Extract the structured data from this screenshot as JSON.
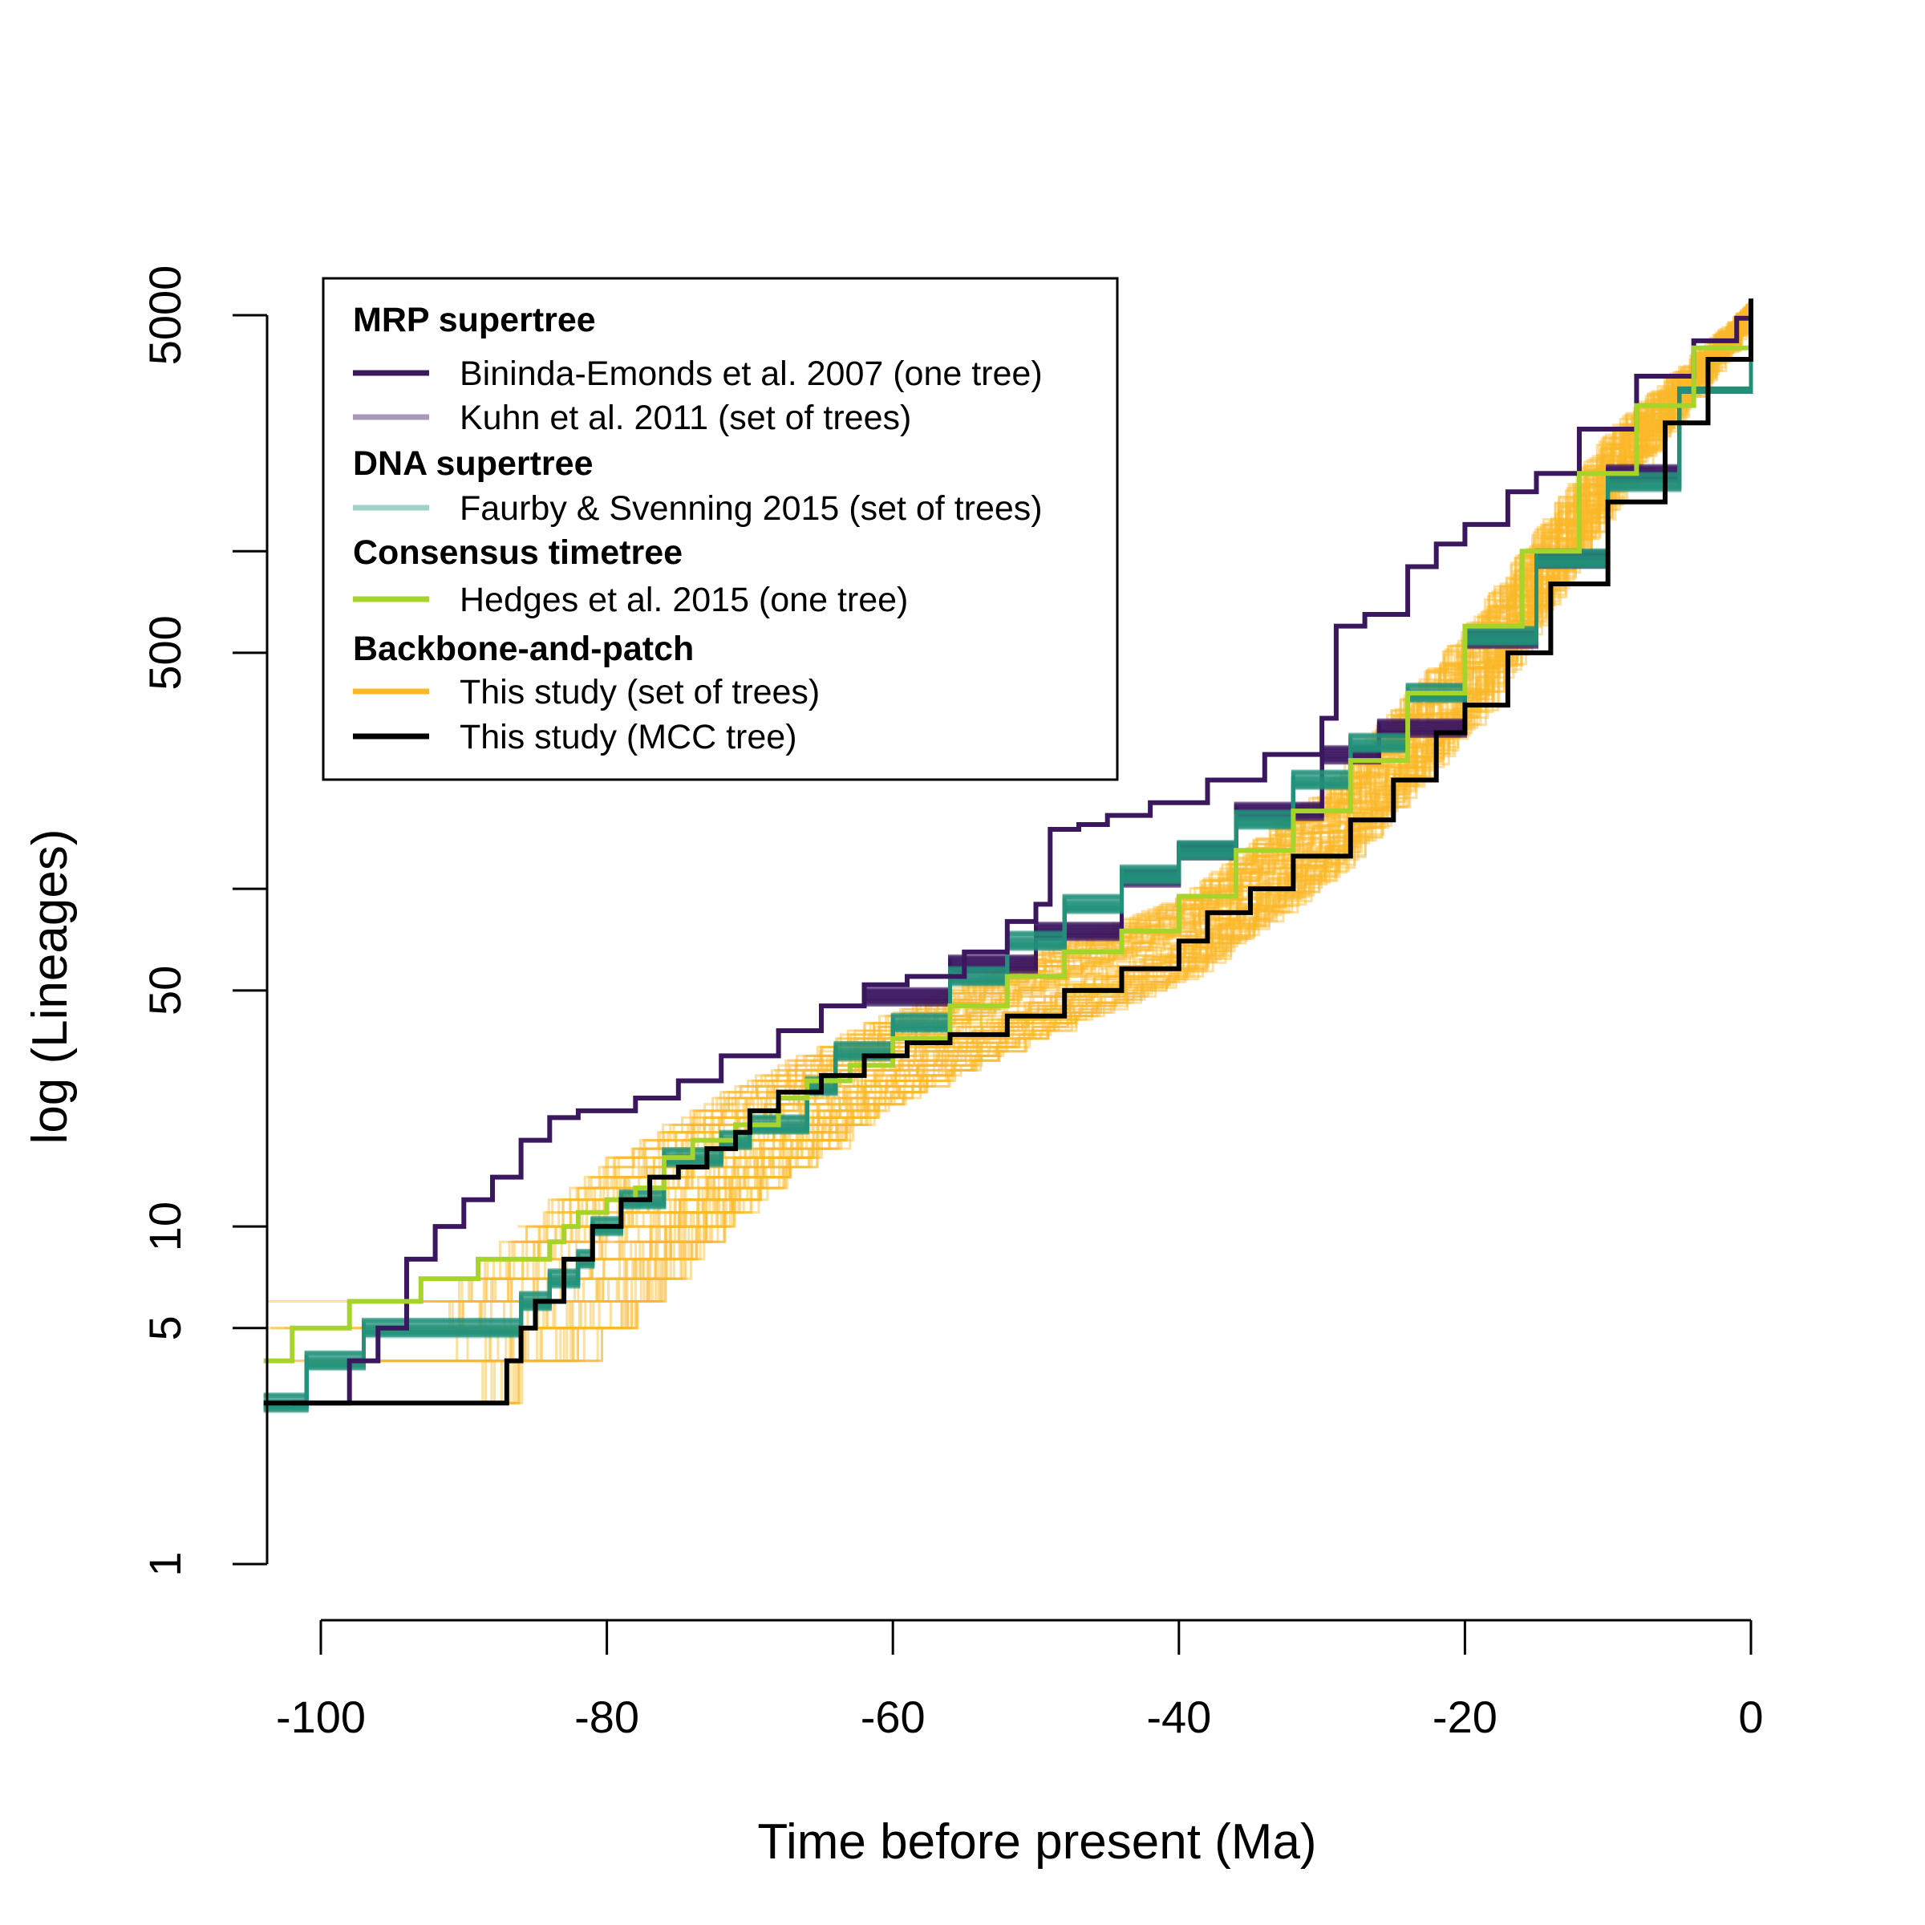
{
  "chart_data": {
    "type": "line",
    "xlabel": "Time before present (Ma)",
    "ylabel": "log (Lineages)",
    "x_ticks": [
      -100,
      -80,
      -60,
      -40,
      -20,
      0
    ],
    "x_tick_labels": [
      "-100",
      "-80",
      "-60",
      "-40",
      "-20",
      "0"
    ],
    "y_scale": "log",
    "y_ticks": [
      1,
      5,
      10,
      50,
      100,
      500,
      1000,
      5000
    ],
    "y_tick_labels": [
      "1",
      "5",
      "10",
      "50",
      "",
      "500",
      "",
      "5000"
    ],
    "xlim": [
      -104,
      0
    ],
    "ylim": [
      1,
      5000
    ],
    "grid": false,
    "legend_position": "top-left",
    "legend": [
      {
        "kind": "header",
        "text": "MRP supertree"
      },
      {
        "kind": "item",
        "text": "Bininda-Emonds et al. 2007 (one tree)",
        "color": "#3b1760",
        "series": "bininda"
      },
      {
        "kind": "item",
        "text": "Kuhn et al. 2011 (set of trees)",
        "color": "#a89ab8",
        "series": "kuhn"
      },
      {
        "kind": "header",
        "text": "DNA supertree"
      },
      {
        "kind": "item",
        "text": "Faurby & Svenning 2015 (set of trees)",
        "color": "#9fd3c8",
        "series": "faurby"
      },
      {
        "kind": "header",
        "text": "Consensus timetree"
      },
      {
        "kind": "item",
        "text": "Hedges et al. 2015 (one tree)",
        "color": "#a6d42a",
        "series": "hedges"
      },
      {
        "kind": "header",
        "text": "Backbone-and-patch"
      },
      {
        "kind": "item",
        "text": "This study (set of trees)",
        "color": "#fbb728",
        "series": "this_set"
      },
      {
        "kind": "item",
        "text": "This study (MCC tree)",
        "color": "#000000",
        "series": "this_mcc"
      }
    ],
    "series": [
      {
        "id": "this_set",
        "color": "#fbb728",
        "style": "band",
        "count": 80,
        "start_x_range": [
          -104,
          -76
        ],
        "lower": [
          [
            -104,
            3
          ],
          [
            -90,
            3
          ],
          [
            -80,
            5
          ],
          [
            -72,
            11
          ],
          [
            -62,
            22
          ],
          [
            -50,
            37
          ],
          [
            -40,
            55
          ],
          [
            -30,
            110
          ],
          [
            -20,
            320
          ],
          [
            -10,
            1500
          ],
          [
            0,
            5500
          ]
        ],
        "upper": [
          [
            -104,
            6
          ],
          [
            -92,
            6
          ],
          [
            -86,
            10
          ],
          [
            -80,
            16
          ],
          [
            -72,
            25
          ],
          [
            -62,
            40
          ],
          [
            -50,
            65
          ],
          [
            -40,
            95
          ],
          [
            -30,
            200
          ],
          [
            -20,
            600
          ],
          [
            -10,
            2300
          ],
          [
            0,
            5500
          ]
        ]
      },
      {
        "id": "kuhn",
        "color": "#3b1760",
        "style": "band",
        "count": 30,
        "points": [
          [
            -62,
            48
          ],
          [
            -56,
            60
          ],
          [
            -50,
            75
          ],
          [
            -44,
            108
          ],
          [
            -40,
            130
          ],
          [
            -36,
            170
          ],
          [
            -30,
            250
          ],
          [
            -26,
            300
          ],
          [
            -20,
            550
          ],
          [
            -15,
            950
          ],
          [
            -10,
            1700
          ],
          [
            -5,
            3000
          ],
          [
            0,
            5000
          ]
        ]
      },
      {
        "id": "faurby",
        "color": "#23917a",
        "style": "band",
        "count": 30,
        "points": [
          [
            -104,
            3
          ],
          [
            -102,
            3
          ],
          [
            -101,
            4
          ],
          [
            -98,
            4
          ],
          [
            -97,
            5
          ],
          [
            -87,
            5
          ],
          [
            -86,
            6
          ],
          [
            -84,
            7
          ],
          [
            -82,
            8
          ],
          [
            -81,
            10
          ],
          [
            -79,
            12
          ],
          [
            -76,
            16
          ],
          [
            -72,
            18
          ],
          [
            -70,
            20
          ],
          [
            -66,
            26
          ],
          [
            -64,
            33
          ],
          [
            -60,
            40
          ],
          [
            -56,
            55
          ],
          [
            -52,
            70
          ],
          [
            -48,
            90
          ],
          [
            -44,
            110
          ],
          [
            -40,
            130
          ],
          [
            -36,
            160
          ],
          [
            -32,
            210
          ],
          [
            -28,
            270
          ],
          [
            -24,
            380
          ],
          [
            -20,
            560
          ],
          [
            -15,
            950
          ],
          [
            -10,
            1600
          ],
          [
            -5,
            3000
          ],
          [
            0,
            5400
          ]
        ]
      },
      {
        "id": "bininda",
        "color": "#3b1760",
        "style": "steps",
        "points": [
          [
            -102,
            3
          ],
          [
            -98,
            4
          ],
          [
            -96,
            5
          ],
          [
            -94,
            8
          ],
          [
            -92,
            10
          ],
          [
            -90,
            12
          ],
          [
            -88,
            14
          ],
          [
            -86,
            18
          ],
          [
            -84,
            21
          ],
          [
            -82,
            22
          ],
          [
            -78,
            24
          ],
          [
            -75,
            27
          ],
          [
            -72,
            32
          ],
          [
            -68,
            38
          ],
          [
            -65,
            45
          ],
          [
            -62,
            52
          ],
          [
            -59,
            55
          ],
          [
            -55,
            65
          ],
          [
            -52,
            80
          ],
          [
            -50,
            90
          ],
          [
            -49,
            150
          ],
          [
            -47,
            155
          ],
          [
            -45,
            165
          ],
          [
            -42,
            180
          ],
          [
            -38,
            210
          ],
          [
            -34,
            250
          ],
          [
            -30,
            320
          ],
          [
            -29,
            600
          ],
          [
            -27,
            650
          ],
          [
            -24,
            900
          ],
          [
            -22,
            1050
          ],
          [
            -20,
            1200
          ],
          [
            -17,
            1500
          ],
          [
            -15,
            1700
          ],
          [
            -12,
            2300
          ],
          [
            -8,
            3300
          ],
          [
            -4,
            4200
          ],
          [
            -1,
            4900
          ],
          [
            0,
            5000
          ]
        ]
      },
      {
        "id": "hedges",
        "color": "#a6d42a",
        "style": "steps",
        "points": [
          [
            -104,
            4
          ],
          [
            -102,
            5
          ],
          [
            -100,
            5
          ],
          [
            -98,
            6
          ],
          [
            -94,
            6
          ],
          [
            -93,
            7
          ],
          [
            -90,
            7
          ],
          [
            -89,
            8
          ],
          [
            -86,
            8
          ],
          [
            -84,
            9
          ],
          [
            -83,
            10
          ],
          [
            -82,
            11
          ],
          [
            -80,
            12
          ],
          [
            -78,
            13
          ],
          [
            -76,
            16
          ],
          [
            -74,
            18
          ],
          [
            -71,
            20
          ],
          [
            -68,
            24
          ],
          [
            -66,
            27
          ],
          [
            -63,
            30
          ],
          [
            -60,
            36
          ],
          [
            -56,
            45
          ],
          [
            -52,
            55
          ],
          [
            -48,
            65
          ],
          [
            -44,
            75
          ],
          [
            -40,
            95
          ],
          [
            -36,
            130
          ],
          [
            -32,
            170
          ],
          [
            -28,
            240
          ],
          [
            -24,
            380
          ],
          [
            -20,
            600
          ],
          [
            -16,
            1000
          ],
          [
            -12,
            1700
          ],
          [
            -8,
            2700
          ],
          [
            -4,
            4000
          ],
          [
            0,
            5500
          ]
        ]
      },
      {
        "id": "this_mcc",
        "color": "#000000",
        "style": "steps",
        "points": [
          [
            -104,
            3
          ],
          [
            -88,
            3
          ],
          [
            -87,
            4
          ],
          [
            -86,
            5
          ],
          [
            -85,
            6
          ],
          [
            -84,
            6
          ],
          [
            -83,
            8
          ],
          [
            -81,
            10
          ],
          [
            -79,
            12
          ],
          [
            -77,
            14
          ],
          [
            -75,
            15
          ],
          [
            -73,
            17
          ],
          [
            -71,
            19
          ],
          [
            -70,
            22
          ],
          [
            -68,
            25
          ],
          [
            -65,
            28
          ],
          [
            -62,
            32
          ],
          [
            -59,
            35
          ],
          [
            -56,
            37
          ],
          [
            -52,
            42
          ],
          [
            -48,
            50
          ],
          [
            -44,
            58
          ],
          [
            -40,
            70
          ],
          [
            -38,
            85
          ],
          [
            -35,
            100
          ],
          [
            -32,
            125
          ],
          [
            -28,
            160
          ],
          [
            -25,
            210
          ],
          [
            -22,
            290
          ],
          [
            -20,
            350
          ],
          [
            -17,
            500
          ],
          [
            -14,
            800
          ],
          [
            -10,
            1400
          ],
          [
            -6,
            2400
          ],
          [
            -3,
            3700
          ],
          [
            0,
            5600
          ]
        ]
      }
    ]
  }
}
